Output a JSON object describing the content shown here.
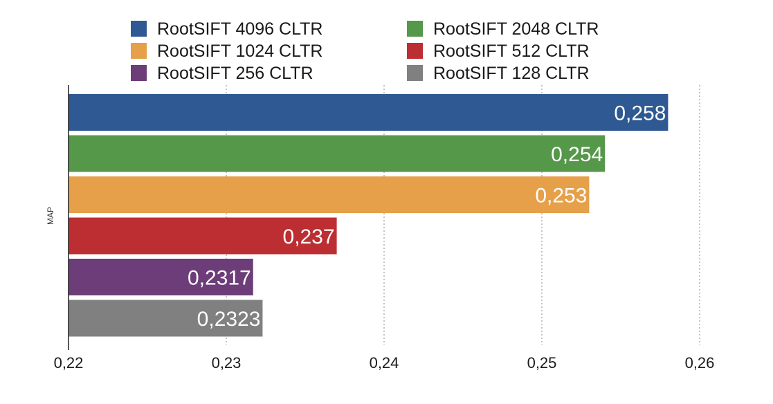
{
  "chart_data": {
    "type": "bar",
    "orientation": "horizontal",
    "ylabel": "MAP",
    "xlim": [
      0.22,
      0.26
    ],
    "ticks": [
      "0,22",
      "0,23",
      "0,24",
      "0,25",
      "0,26"
    ],
    "tick_values": [
      0.22,
      0.23,
      0.24,
      0.25,
      0.26
    ],
    "grid": "vertical dotted",
    "legend_position": "top",
    "series": [
      {
        "name": "RootSIFT 4096 CLTR",
        "value": 0.258,
        "label": "0,258",
        "color": "#2f5992"
      },
      {
        "name": "RootSIFT 2048 CLTR",
        "value": 0.254,
        "label": "0,254",
        "color": "#55984a"
      },
      {
        "name": "RootSIFT 1024 CLTR",
        "value": 0.253,
        "label": "0,253",
        "color": "#e6a04a"
      },
      {
        "name": "RootSIFT 512 CLTR",
        "value": 0.237,
        "label": "0,237",
        "color": "#bd2e32"
      },
      {
        "name": "RootSIFT 256 CLTR",
        "value": 0.2317,
        "label": "0,2317",
        "color": "#6c3d78"
      },
      {
        "name": "RootSIFT 128 CLTR",
        "value": 0.2323,
        "label": "0,2323",
        "color": "#808080"
      }
    ]
  }
}
